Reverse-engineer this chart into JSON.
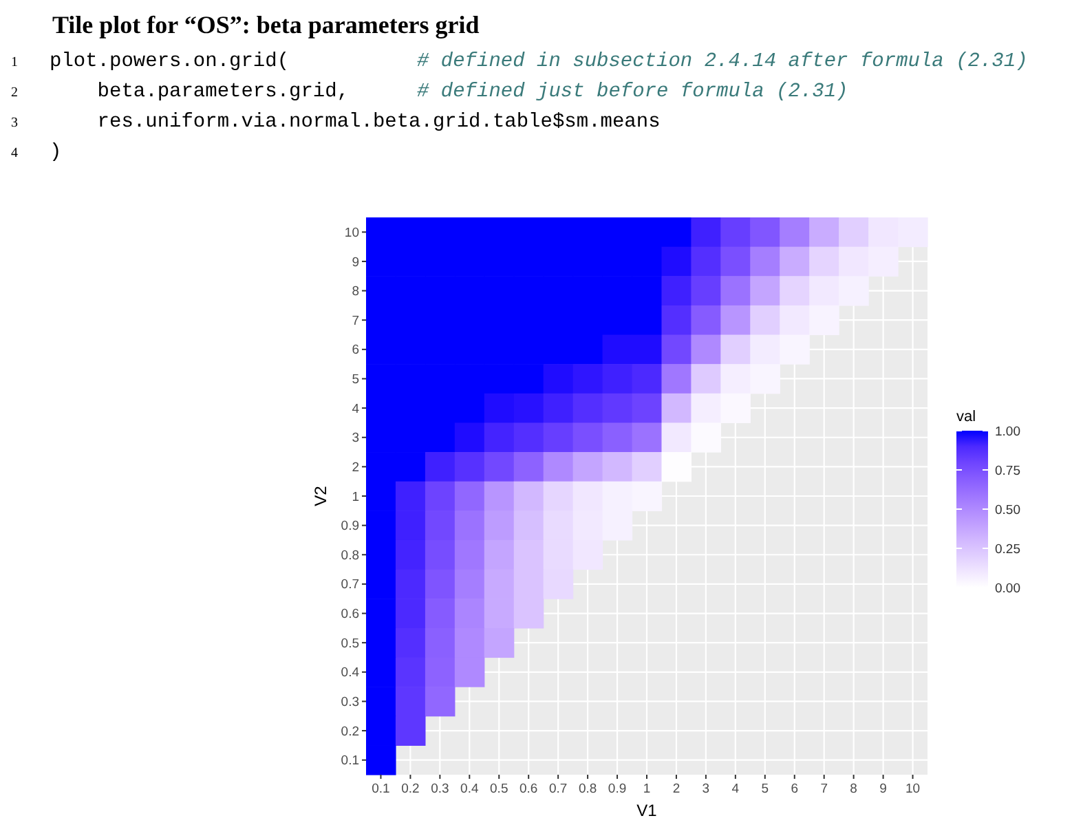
{
  "chart_data": {
    "type": "heatmap",
    "title": "Tile plot for “OS”: beta parameters grid",
    "annotations": [
      "1 plot.powers.on.grid(         # defined in subsection 2.4.14 after formula (2.31)",
      "2     beta.parameters.grid,   # defined just before formula (2.31)",
      "3     res.uniform.via.normal.beta.grid.table$sm.means",
      "4 )"
    ],
    "xlabel": "V1",
    "ylabel": "V2",
    "legend_title": "val",
    "categories": [
      "0.1",
      "0.2",
      "0.3",
      "0.4",
      "0.5",
      "0.6",
      "0.7",
      "0.8",
      "0.9",
      "1",
      "2",
      "3",
      "4",
      "5",
      "6",
      "7",
      "8",
      "9",
      "10"
    ],
    "y_categories": [
      "10",
      "9",
      "8",
      "7",
      "6",
      "5",
      "4",
      "3",
      "2",
      "1",
      "0.9",
      "0.8",
      "0.7",
      "0.6",
      "0.5",
      "0.4",
      "0.3",
      "0.2",
      "0.1"
    ],
    "cells": [
      [
        1,
        1,
        1,
        1,
        1,
        1,
        1,
        1,
        1,
        1,
        1,
        0.93,
        0.82,
        0.72,
        0.55,
        0.35,
        0.2,
        0.1,
        0.08
      ],
      [
        1,
        1,
        1,
        1,
        1,
        1,
        1,
        1,
        1,
        1,
        0.98,
        0.88,
        0.75,
        0.55,
        0.35,
        0.18,
        0.1,
        0.07,
        null
      ],
      [
        1,
        1,
        1,
        1,
        1,
        1,
        1,
        1,
        1,
        1,
        0.93,
        0.82,
        0.6,
        0.38,
        0.18,
        0.09,
        0.06,
        null,
        null
      ],
      [
        1,
        1,
        1,
        1,
        1,
        1,
        1,
        1,
        1,
        1,
        0.88,
        0.7,
        0.45,
        0.2,
        0.09,
        0.05,
        null,
        null,
        null
      ],
      [
        1,
        1,
        1,
        1,
        1,
        1,
        1,
        1,
        0.98,
        0.98,
        0.78,
        0.5,
        0.2,
        0.08,
        0.04,
        null,
        null,
        null,
        null
      ],
      [
        1,
        1,
        1,
        1,
        1,
        1,
        0.98,
        0.96,
        0.93,
        0.9,
        0.58,
        0.22,
        0.07,
        0.04,
        null,
        null,
        null,
        null,
        null
      ],
      [
        1,
        1,
        1,
        1,
        0.98,
        0.97,
        0.93,
        0.88,
        0.84,
        0.8,
        0.3,
        0.07,
        0.03,
        null,
        null,
        null,
        null,
        null,
        null
      ],
      [
        1,
        1,
        1,
        0.98,
        0.92,
        0.88,
        0.82,
        0.75,
        0.68,
        0.6,
        0.09,
        0.02,
        null,
        null,
        null,
        null,
        null,
        null,
        null
      ],
      [
        1,
        1,
        0.93,
        0.87,
        0.78,
        0.67,
        0.5,
        0.38,
        0.3,
        0.2,
        0.01,
        null,
        null,
        null,
        null,
        null,
        null,
        null,
        null
      ],
      [
        1,
        0.93,
        0.8,
        0.65,
        0.45,
        0.3,
        0.17,
        0.1,
        0.06,
        0.04,
        null,
        null,
        null,
        null,
        null,
        null,
        null,
        null,
        null
      ],
      [
        1,
        0.93,
        0.78,
        0.6,
        0.42,
        0.27,
        0.15,
        0.09,
        0.06,
        null,
        null,
        null,
        null,
        null,
        null,
        null,
        null,
        null,
        null
      ],
      [
        1,
        0.92,
        0.76,
        0.58,
        0.38,
        0.25,
        0.15,
        0.1,
        null,
        null,
        null,
        null,
        null,
        null,
        null,
        null,
        null,
        null,
        null
      ],
      [
        1,
        0.9,
        0.73,
        0.55,
        0.36,
        0.25,
        0.16,
        null,
        null,
        null,
        null,
        null,
        null,
        null,
        null,
        null,
        null,
        null,
        null
      ],
      [
        1,
        0.9,
        0.7,
        0.52,
        0.36,
        0.25,
        null,
        null,
        null,
        null,
        null,
        null,
        null,
        null,
        null,
        null,
        null,
        null,
        null
      ],
      [
        1,
        0.88,
        0.68,
        0.5,
        0.38,
        null,
        null,
        null,
        null,
        null,
        null,
        null,
        null,
        null,
        null,
        null,
        null,
        null,
        null
      ],
      [
        1,
        0.86,
        0.67,
        0.5,
        null,
        null,
        null,
        null,
        null,
        null,
        null,
        null,
        null,
        null,
        null,
        null,
        null,
        null,
        null
      ],
      [
        1,
        0.85,
        0.65,
        null,
        null,
        null,
        null,
        null,
        null,
        null,
        null,
        null,
        null,
        null,
        null,
        null,
        null,
        null,
        null
      ],
      [
        1,
        0.85,
        null,
        null,
        null,
        null,
        null,
        null,
        null,
        null,
        null,
        null,
        null,
        null,
        null,
        null,
        null,
        null,
        null
      ],
      [
        1,
        null,
        null,
        null,
        null,
        null,
        null,
        null,
        null,
        null,
        null,
        null,
        null,
        null,
        null,
        null,
        null,
        null,
        null
      ]
    ],
    "clim": [
      0,
      1
    ],
    "cticks": [
      {
        "value": 0,
        "label": "0.00"
      },
      {
        "value": 0.25,
        "label": "0.25"
      },
      {
        "value": 0.5,
        "label": "0.50"
      },
      {
        "value": 0.75,
        "label": "0.75"
      },
      {
        "value": 1,
        "label": "1.00"
      }
    ],
    "grid": true
  }
}
